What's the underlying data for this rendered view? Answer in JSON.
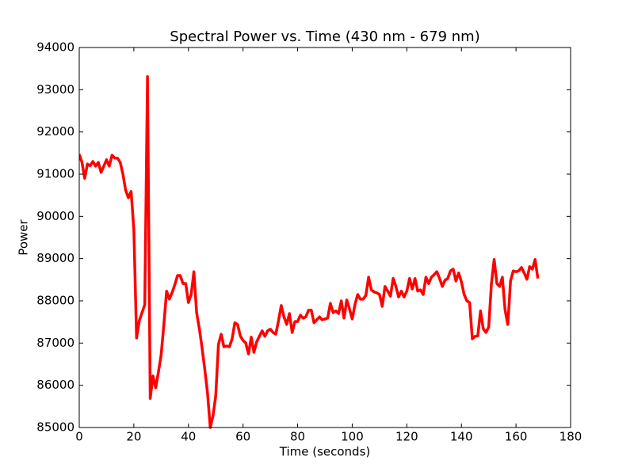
{
  "chart_data": {
    "type": "line",
    "title": "Spectral Power vs. Time (430 nm - 679 nm)",
    "xlabel": "Time (seconds)",
    "ylabel": "Power",
    "x": [
      0,
      1,
      2,
      3,
      4,
      5,
      6,
      7,
      8,
      9,
      10,
      11,
      12,
      13,
      14,
      15,
      16,
      17,
      18,
      19,
      20,
      21,
      22,
      23,
      24,
      25,
      26,
      27,
      28,
      29,
      30,
      31,
      32,
      33,
      34,
      35,
      36,
      37,
      38,
      39,
      40,
      41,
      42,
      43,
      44,
      45,
      46,
      47,
      48,
      49,
      50,
      51,
      52,
      53,
      54,
      55,
      56,
      57,
      58,
      59,
      60,
      61,
      62,
      63,
      64,
      65,
      66,
      67,
      68,
      69,
      70,
      71,
      72,
      73,
      74,
      75,
      76,
      77,
      78,
      79,
      80,
      81,
      82,
      83,
      84,
      85,
      86,
      87,
      88,
      89,
      90,
      91,
      92,
      93,
      94,
      95,
      96,
      97,
      98,
      99,
      100,
      101,
      102,
      103,
      104,
      105,
      106,
      107,
      108,
      109,
      110,
      111,
      112,
      113,
      114,
      115,
      116,
      117,
      118,
      119,
      120,
      121,
      122,
      123,
      124,
      125,
      126,
      127,
      128,
      129,
      130,
      131,
      132,
      133,
      134,
      135,
      136,
      137,
      138,
      139,
      140,
      141,
      142,
      143,
      144,
      145,
      146,
      147,
      148,
      149,
      150,
      151,
      152,
      153,
      154,
      155,
      156,
      157,
      158,
      159,
      160,
      161,
      162,
      163,
      164,
      165,
      166,
      167,
      168
    ],
    "series": [
      {
        "name": "Power",
        "color": "#ff0000",
        "values": [
          91470,
          91280,
          90900,
          91240,
          91200,
          91300,
          91190,
          91280,
          91040,
          91190,
          91340,
          91190,
          91450,
          91380,
          91380,
          91280,
          91000,
          90620,
          90440,
          90590,
          89690,
          87120,
          87530,
          87720,
          87910,
          93310,
          85690,
          86220,
          85940,
          86310,
          86720,
          87440,
          88230,
          88040,
          88190,
          88380,
          88600,
          88600,
          88410,
          88410,
          87960,
          88150,
          88690,
          87720,
          87340,
          86880,
          86370,
          85810,
          85000,
          85280,
          85750,
          86970,
          87210,
          86910,
          86930,
          86910,
          87100,
          87480,
          87440,
          87170,
          87060,
          87000,
          86740,
          87140,
          86780,
          87030,
          87160,
          87290,
          87160,
          87290,
          87330,
          87250,
          87210,
          87530,
          87890,
          87620,
          87440,
          87700,
          87250,
          87510,
          87510,
          87660,
          87590,
          87620,
          87780,
          87780,
          87480,
          87550,
          87620,
          87550,
          87570,
          87590,
          87940,
          87720,
          87760,
          87700,
          88000,
          87590,
          88020,
          87810,
          87570,
          87910,
          88150,
          88040,
          88040,
          88130,
          88560,
          88260,
          88210,
          88190,
          88150,
          87870,
          88340,
          88230,
          88110,
          88530,
          88340,
          88090,
          88230,
          88090,
          88230,
          88530,
          88280,
          88530,
          88230,
          88260,
          88150,
          88560,
          88410,
          88560,
          88620,
          88690,
          88530,
          88340,
          88490,
          88530,
          88710,
          88750,
          88470,
          88660,
          88450,
          88150,
          88000,
          87960,
          87100,
          87160,
          87170,
          87760,
          87340,
          87250,
          87380,
          88410,
          88980,
          88410,
          88340,
          88560,
          87780,
          87440,
          88470,
          88710,
          88690,
          88710,
          88790,
          88660,
          88510,
          88810,
          88750,
          88980,
          88530
        ]
      }
    ],
    "xlim": [
      0,
      180
    ],
    "xticks": [
      0,
      20,
      40,
      60,
      80,
      100,
      120,
      140,
      160,
      180
    ],
    "ylim": [
      85000,
      94000
    ],
    "yticks": [
      85000,
      86000,
      87000,
      88000,
      89000,
      90000,
      91000,
      92000,
      93000,
      94000
    ],
    "grid": false
  }
}
